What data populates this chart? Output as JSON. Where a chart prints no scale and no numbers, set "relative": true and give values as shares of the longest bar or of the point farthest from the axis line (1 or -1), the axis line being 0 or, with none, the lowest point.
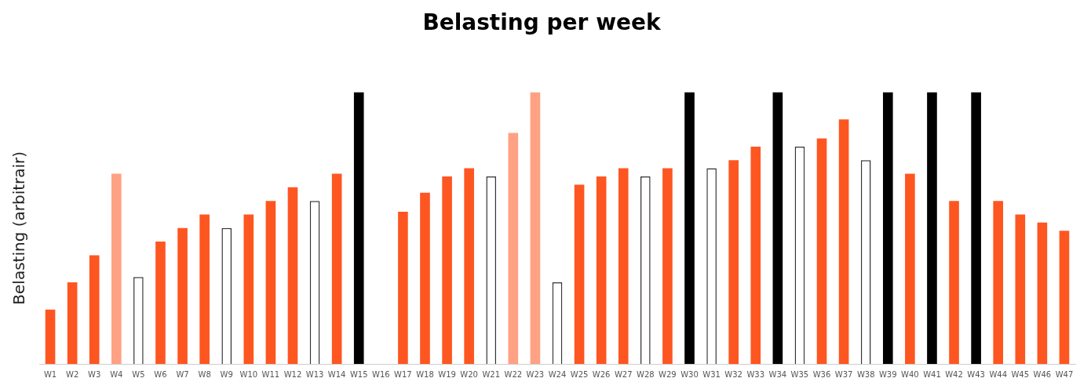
{
  "chart_data": {
    "type": "bar",
    "title": "Belasting per week",
    "ylabel": "Belasting (arbitrair)",
    "relative": true,
    "grid": false,
    "legend": false,
    "categories": [
      "W1",
      "W2",
      "W3",
      "W4",
      "W5",
      "W6",
      "W7",
      "W8",
      "W9",
      "W10",
      "W11",
      "W12",
      "W13",
      "W14",
      "W15",
      "W16",
      "W17",
      "W18",
      "W19",
      "W20",
      "W21",
      "W22",
      "W23",
      "W24",
      "W25",
      "W26",
      "W27",
      "W28",
      "W29",
      "W30",
      "W31",
      "W32",
      "W33",
      "W34",
      "W35",
      "W36",
      "W37",
      "W38",
      "W39",
      "W40",
      "W41",
      "W42",
      "W43",
      "W44",
      "W45",
      "W46",
      "W47"
    ],
    "values": [
      0.2,
      0.3,
      0.4,
      0.7,
      0.32,
      0.45,
      0.5,
      0.55,
      0.5,
      0.55,
      0.6,
      0.65,
      0.6,
      0.7,
      1,
      null,
      0.56,
      0.63,
      0.69,
      0.72,
      0.69,
      0.85,
      1,
      0.3,
      0.66,
      0.69,
      0.72,
      0.69,
      0.72,
      1,
      0.72,
      0.75,
      0.8,
      1,
      0.8,
      0.83,
      0.9,
      0.75,
      1,
      0.7,
      1,
      0.6,
      1,
      0.6,
      0.55,
      0.52,
      0.49
    ],
    "colors": [
      "#fe5621",
      "#fe5621",
      "#fe5621",
      "#ffa183",
      "#ffffff",
      "#fe5621",
      "#fe5621",
      "#fe5621",
      "#ffffff",
      "#fe5621",
      "#fe5621",
      "#fe5621",
      "#ffffff",
      "#fe5621",
      "#000000",
      "#fe5621",
      "#fe5621",
      "#fe5621",
      "#fe5621",
      "#fe5621",
      "#ffffff",
      "#ffa183",
      "#ffa183",
      "#ffffff",
      "#fe5621",
      "#fe5621",
      "#fe5621",
      "#ffffff",
      "#fe5621",
      "#000000",
      "#ffffff",
      "#fe5621",
      "#fe5621",
      "#000000",
      "#ffffff",
      "#fe5621",
      "#fe5621",
      "#ffffff",
      "#000000",
      "#fe5621",
      "#000000",
      "#fe5621",
      "#000000",
      "#fe5621",
      "#fe5621",
      "#fe5621",
      "#fe5621"
    ]
  }
}
